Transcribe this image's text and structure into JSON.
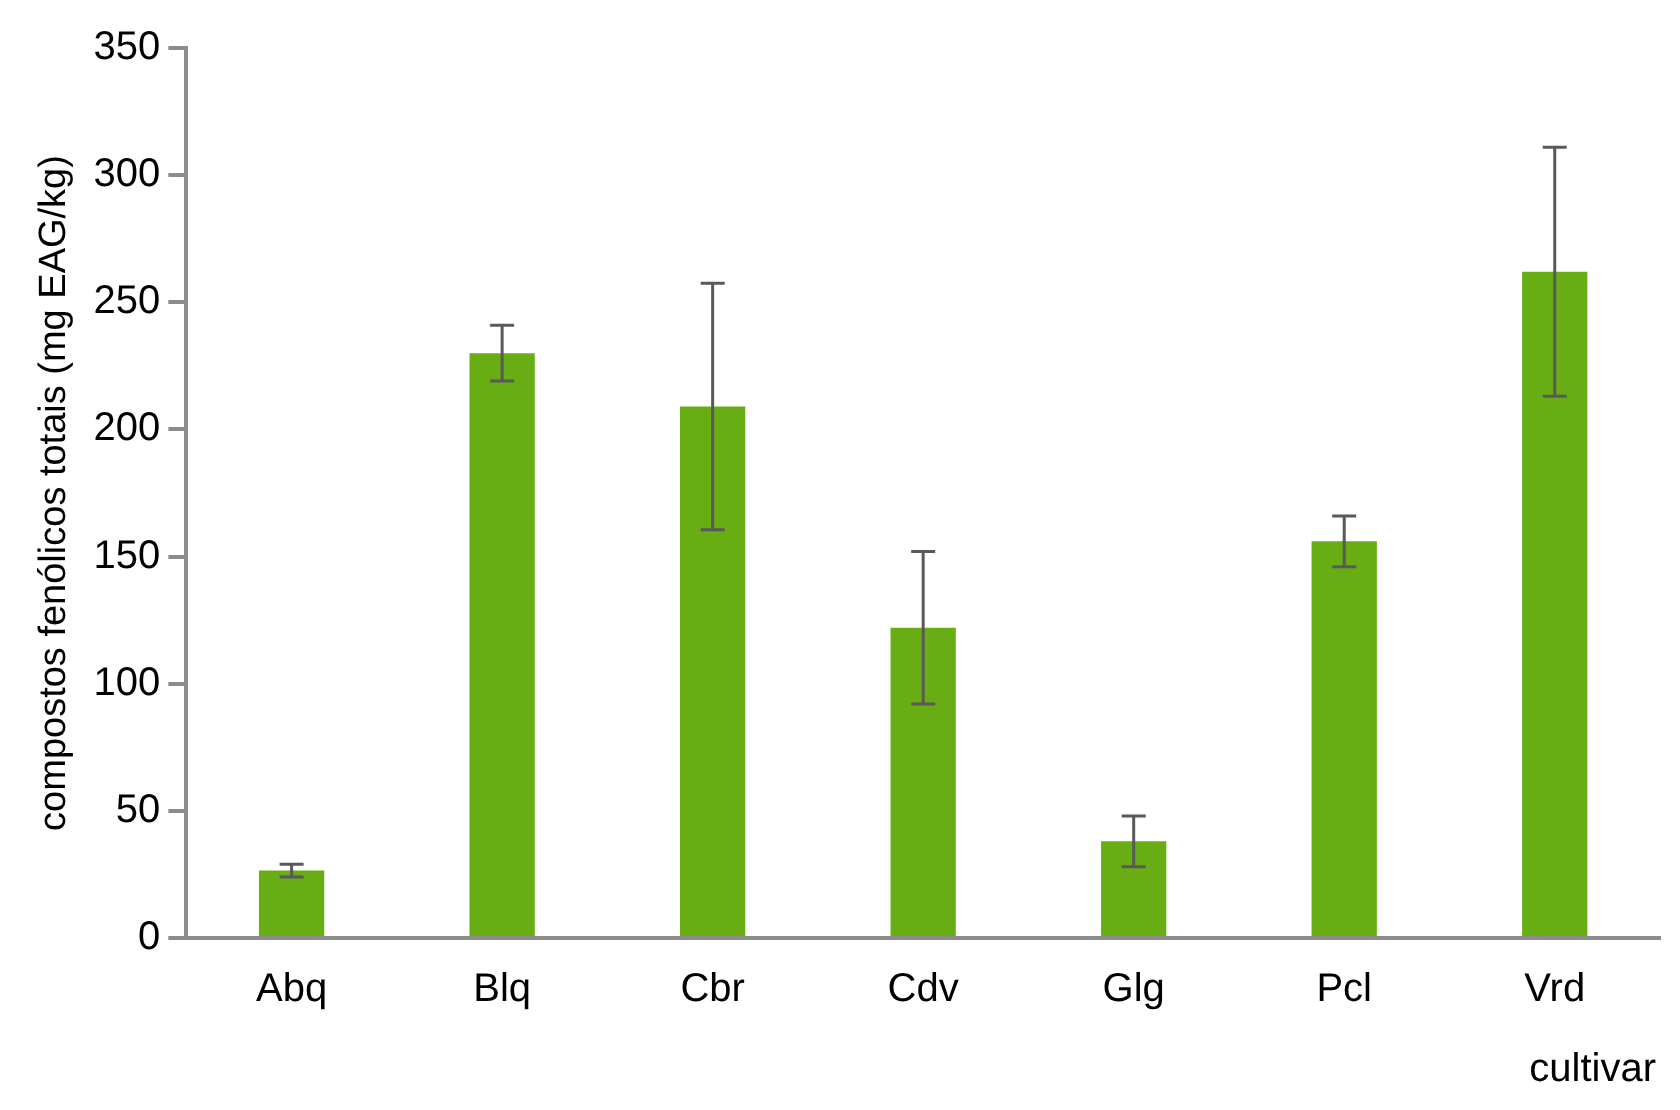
{
  "chart_data": {
    "type": "bar",
    "xlabel": "cultivar",
    "ylabel": "compostos fenólicos totais (mg EAG/kg)",
    "categories": [
      "Abq",
      "Blq",
      "Cbr",
      "Cdv",
      "Glg",
      "Pcl",
      "Vrd"
    ],
    "values": [
      26.5,
      230,
      209,
      122,
      38,
      156,
      262
    ],
    "errors": [
      2.5,
      11,
      48.5,
      30,
      10,
      10,
      49
    ],
    "color": "#68ad14",
    "ylim": [
      0,
      350
    ],
    "yticks": [
      0,
      50,
      100,
      150,
      200,
      250,
      300,
      350
    ],
    "grid": false,
    "legend": false
  }
}
